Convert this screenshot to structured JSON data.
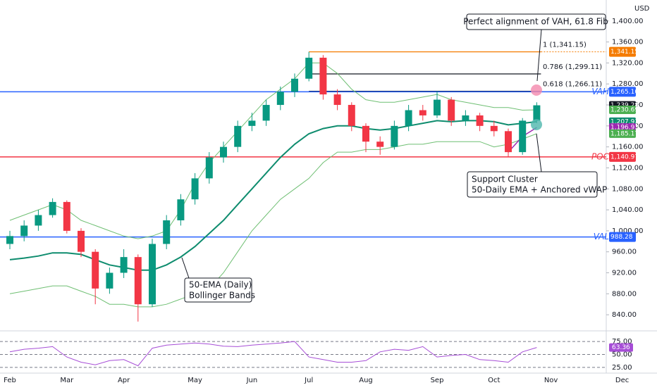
{
  "chart_data": {
    "type": "candlestick",
    "currency": "USD",
    "categories": [
      "Feb",
      null,
      null,
      null,
      "Mar",
      null,
      null,
      null,
      "Apr",
      null,
      null,
      null,
      null,
      "May",
      null,
      null,
      null,
      "Jun",
      null,
      null,
      null,
      "Jul",
      null,
      null,
      null,
      "Aug",
      null,
      null,
      null,
      null,
      "Sep",
      null,
      null,
      null,
      "Oct",
      null,
      null,
      null,
      "Nov",
      null,
      null,
      null,
      null,
      "Dec"
    ],
    "open": [
      975,
      990,
      1010,
      1030,
      1055,
      1000,
      960,
      890,
      920,
      950,
      860,
      975,
      1020,
      1060,
      1100,
      1140,
      1160,
      1200,
      1210,
      1240,
      1265,
      1290,
      1330,
      1260,
      1240,
      1200,
      1170,
      1160,
      1200,
      1230,
      1220,
      1250,
      1210,
      1220,
      1200,
      1190,
      1150,
      1210,
      null,
      null,
      null,
      null,
      null,
      null
    ],
    "high": [
      1000,
      1020,
      1040,
      1062,
      1058,
      1005,
      965,
      930,
      965,
      955,
      985,
      1030,
      1070,
      1110,
      1150,
      1170,
      1210,
      1225,
      1250,
      1275,
      1300,
      1341.15,
      1335,
      1270,
      1245,
      1205,
      1180,
      1210,
      1240,
      1240,
      1266,
      1255,
      1230,
      1225,
      1210,
      1195,
      1215,
      1245,
      null,
      null,
      null,
      null,
      null,
      null
    ],
    "low": [
      965,
      980,
      1000,
      1025,
      995,
      950,
      860,
      880,
      910,
      827,
      855,
      965,
      1010,
      1050,
      1090,
      1130,
      1150,
      1190,
      1200,
      1230,
      1255,
      1285,
      1250,
      1230,
      1190,
      1150,
      1145,
      1155,
      1190,
      1210,
      1215,
      1200,
      1200,
      1190,
      1180,
      1140,
      1145,
      1205,
      null,
      null,
      null,
      null,
      null,
      null
    ],
    "close": [
      990,
      1010,
      1030,
      1055,
      1000,
      960,
      890,
      920,
      950,
      860,
      975,
      1020,
      1060,
      1100,
      1140,
      1160,
      1200,
      1210,
      1240,
      1265,
      1290,
      1330,
      1260,
      1240,
      1200,
      1170,
      1160,
      1200,
      1230,
      1220,
      1250,
      1210,
      1220,
      1200,
      1190,
      1150,
      1210,
      1239.28,
      null,
      null,
      null,
      null,
      null,
      null
    ],
    "up_color": "#089981",
    "down_color": "#f23645",
    "series": [
      {
        "name": "EMA 50",
        "color": "#0e8c6e",
        "width": 2,
        "values": [
          945,
          948,
          952,
          958,
          958,
          955,
          945,
          935,
          930,
          925,
          925,
          935,
          950,
          970,
          995,
          1020,
          1050,
          1080,
          1110,
          1140,
          1165,
          1185,
          1195,
          1200,
          1200,
          1195,
          1192,
          1195,
          1200,
          1205,
          1210,
          1208,
          1210,
          1210,
          1208,
          1202,
          1205,
          1207.93,
          null,
          null,
          null,
          null,
          null,
          null
        ]
      },
      {
        "name": "Upper Band",
        "color": "#6fbf73",
        "width": 1,
        "values": [
          1020,
          1030,
          1040,
          1050,
          1040,
          1020,
          1010,
          1000,
          990,
          985,
          990,
          1000,
          1040,
          1090,
          1130,
          1160,
          1190,
          1220,
          1250,
          1270,
          1290,
          1320,
          1320,
          1300,
          1270,
          1250,
          1245,
          1245,
          1250,
          1255,
          1260,
          1250,
          1245,
          1240,
          1235,
          1235,
          1230,
          1230.69,
          null,
          null,
          null,
          null,
          null,
          null
        ]
      },
      {
        "name": "Lower Band",
        "color": "#6fbf73",
        "width": 1,
        "values": [
          880,
          885,
          890,
          895,
          895,
          885,
          875,
          860,
          860,
          855,
          855,
          860,
          870,
          880,
          890,
          920,
          960,
          1000,
          1030,
          1060,
          1080,
          1100,
          1130,
          1150,
          1150,
          1155,
          1155,
          1160,
          1165,
          1165,
          1170,
          1170,
          1170,
          1170,
          1160,
          1165,
          1175,
          1185.17,
          null,
          null,
          null,
          null,
          null,
          null
        ]
      },
      {
        "name": "Anchored VWAP",
        "color": "#9c27b0",
        "width": 1.5,
        "values": [
          null,
          null,
          null,
          null,
          null,
          null,
          null,
          null,
          null,
          null,
          null,
          null,
          null,
          null,
          null,
          null,
          null,
          null,
          null,
          null,
          null,
          null,
          null,
          null,
          null,
          null,
          null,
          null,
          null,
          null,
          null,
          null,
          null,
          null,
          null,
          1150,
          1180,
          1196.93,
          null,
          null,
          null,
          null,
          null,
          null
        ]
      },
      {
        "name": "Trendline",
        "color": "#5b4fc4",
        "width": 1.5,
        "values": [
          null,
          null,
          null,
          null,
          null,
          null,
          null,
          null,
          null,
          null,
          null,
          null,
          null,
          null,
          null,
          null,
          null,
          null,
          null,
          null,
          null,
          1341.15,
          null,
          null,
          null,
          null,
          null,
          null,
          null,
          null,
          null,
          null,
          null,
          null,
          null,
          null,
          null,
          null,
          1225,
          null,
          null,
          null,
          null,
          null
        ]
      }
    ],
    "ylim": [
      816,
      1440
    ],
    "yticks": [
      {
        "value": 840,
        "label": "840.00"
      },
      {
        "value": 880,
        "label": "880.00"
      },
      {
        "value": 920,
        "label": "920.00"
      },
      {
        "value": 960,
        "label": "960.00"
      },
      {
        "value": 1000,
        "label": "1,000.00"
      },
      {
        "value": 1040,
        "label": "1,040.00"
      },
      {
        "value": 1080,
        "label": "1,080.00"
      },
      {
        "value": 1120,
        "label": "1,120.00"
      },
      {
        "value": 1160,
        "label": "1,160.00"
      },
      {
        "value": 1200,
        "label": "1,200.00"
      },
      {
        "value": 1240,
        "label": "1,240.00"
      },
      {
        "value": 1280,
        "label": "1,280.00"
      },
      {
        "value": 1320,
        "label": "1,320.00"
      },
      {
        "value": 1360,
        "label": "1,360.00"
      },
      {
        "value": 1400,
        "label": "1,400.00"
      }
    ],
    "levels": [
      {
        "name": "VAH",
        "value": 1265.1,
        "label": "1,265.10",
        "color": "#2962ff"
      },
      {
        "name": "POC",
        "value": 1140.97,
        "label": "1,140.97",
        "color": "#f23645"
      },
      {
        "name": "VAL",
        "value": 988.28,
        "label": "988.28",
        "color": "#2962ff"
      }
    ],
    "fib_levels": [
      {
        "value": 1341.15,
        "label": "1 (1,341.15)",
        "tag": "1,341.15",
        "color": "#f57c00"
      },
      {
        "value": 1299.11,
        "label": "0.786 (1,299.11)",
        "color": "#131722"
      },
      {
        "value": 1266.11,
        "label": "0.618 (1,266.11)",
        "color": "#131722"
      }
    ],
    "price_tags": [
      {
        "value": 1239.28,
        "label": "1,239.28",
        "color": "#131722"
      },
      {
        "value": 1230.69,
        "label": "1,230.69",
        "color": "#4caf50"
      },
      {
        "value": 1207.93,
        "label": "1,207.93",
        "color": "#0e8c6e"
      },
      {
        "value": 1196.93,
        "label": "1,196.93",
        "color": "#9c27b0"
      },
      {
        "value": 1185.17,
        "label": "1,185.17",
        "color": "#4caf50"
      }
    ],
    "annotations": [
      "Perfect alignment of VAH, 61.8 Fib",
      "Support Cluster",
      "50-Daily EMA + Anchored vWAP",
      "50-EMA (Daily)",
      "Bollinger Bands"
    ],
    "rsi": {
      "color": "#a64dd6",
      "values": [
        55,
        60,
        62,
        65,
        45,
        35,
        30,
        38,
        40,
        28,
        62,
        68,
        70,
        72,
        70,
        66,
        65,
        68,
        70,
        72,
        75,
        45,
        40,
        35,
        35,
        38,
        55,
        60,
        58,
        65,
        45,
        48,
        50,
        40,
        38,
        35,
        55,
        63.36,
        null,
        null,
        null,
        null,
        null,
        null
      ],
      "value_label": "63.36",
      "ylim": [
        18,
        86
      ],
      "yticks": [
        {
          "value": 25,
          "label": "25.00"
        },
        {
          "value": 50,
          "label": "50.00"
        },
        {
          "value": 75,
          "label": "75.00"
        }
      ]
    }
  }
}
